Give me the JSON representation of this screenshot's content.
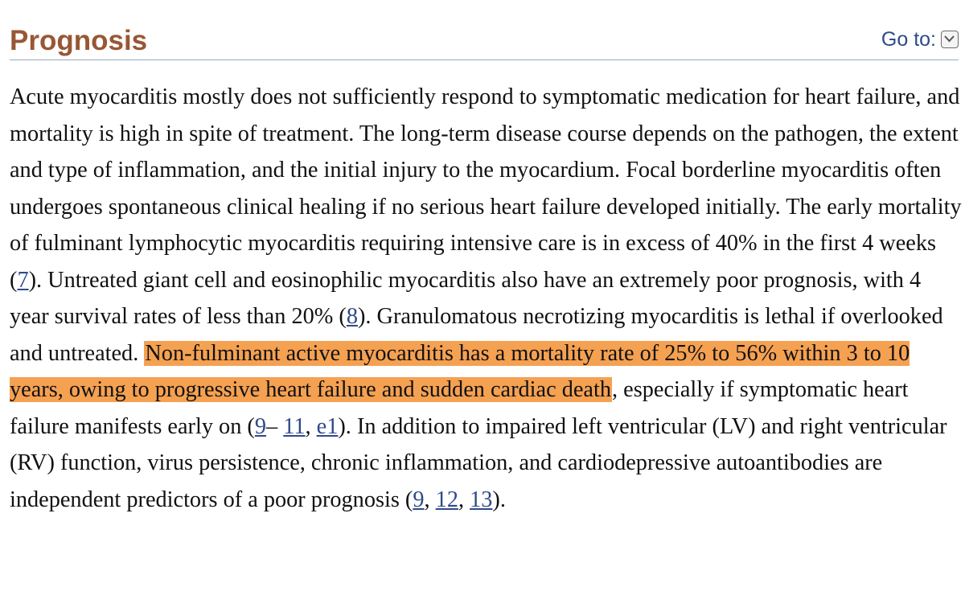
{
  "section": {
    "title": "Prognosis",
    "goto_label": "Go to:",
    "goto_icon": "chevron-down-icon"
  },
  "paragraph": {
    "t1": "Acute myocarditis mostly does not sufficiently respond to symptomatic medication for heart failure, and mortality is high in spite of treatment. The long-term disease course depends on the pathogen, the extent and type of inflammation, and the initial injury to the myocardium. Focal borderline myocarditis often undergoes spontaneous clinical healing if no serious heart failure developed initially. The early mortality of fulminant lymphocytic myocarditis requiring intensive care is in excess of 40% in the first 4 weeks (",
    "ref7": "7",
    "t2": "). Untreated giant cell and eosinophilic myocarditis also have an extremely poor prognosis, with 4 year survival rates of less than 20% (",
    "ref8": "8",
    "t3": "). Granulomatous necrotizing myocarditis is lethal if overlooked and untreated. ",
    "highlight": "Non-fulminant active myocarditis has a mortality rate of 25% to 56% within 3 to 10 years, owing to progressive heart failure and sudden cardiac death",
    "t4": ", especially if symptomatic heart failure manifests early on (",
    "ref9a": "9",
    "dash": "– ",
    "ref11": "11",
    "comma1": ",",
    "refe1": "e1",
    "t5": "). In addition to impaired left ventricular (LV) and right ventricular (RV) function, virus persistence, chronic inflammation, and cardiodepressive autoantibodies are independent predictors of a poor prognosis (",
    "ref9b": "9",
    "comma2": ", ",
    "ref12": "12",
    "comma3": ", ",
    "ref13": "13",
    "t6": ")."
  },
  "colors": {
    "title": "#985735",
    "link": "#2f4a8a",
    "highlight": "#f5a152"
  }
}
